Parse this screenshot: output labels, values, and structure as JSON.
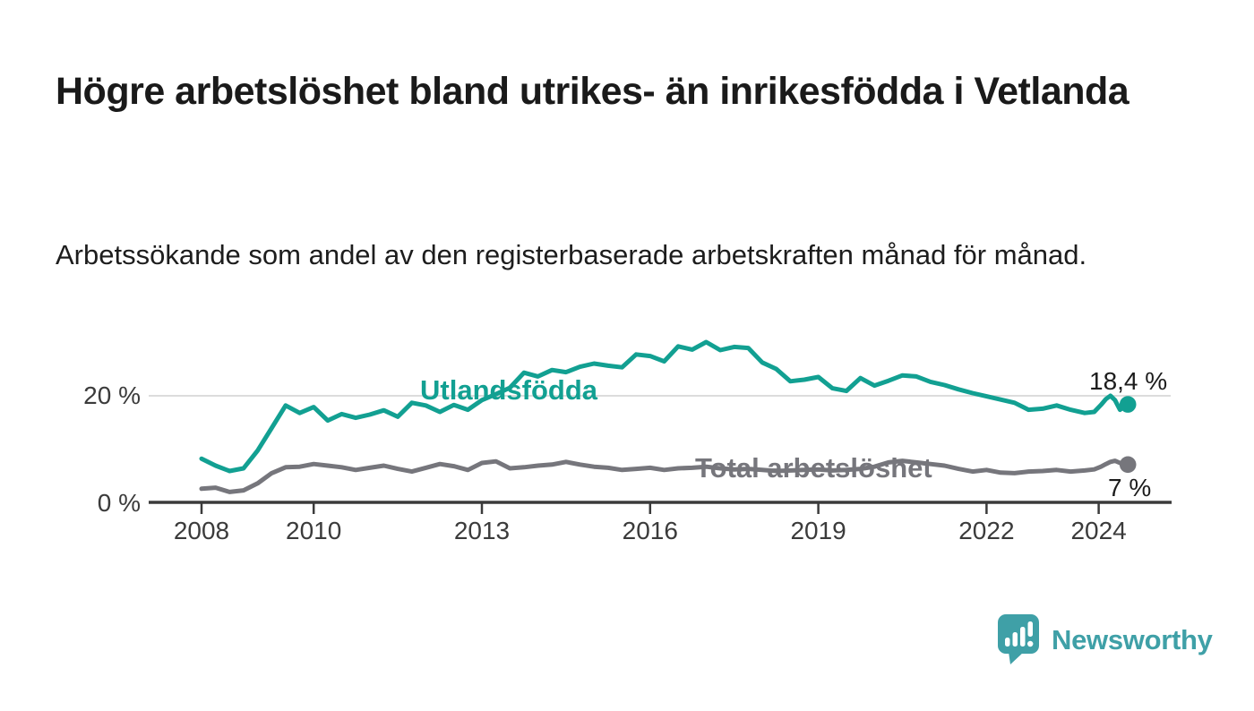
{
  "page": {
    "title": "Högre arbetslöshet bland utrikes- än inrikesfödda i Vetlanda",
    "subtitle": "Arbetssökande som andel av den registerbaserade arbetskraften månad för månad.",
    "background_color": "#ffffff"
  },
  "brand": {
    "name": "Newsworthy",
    "color": "#3fa0a7",
    "icon": "speech-bubble-bar-chart"
  },
  "chart_data": {
    "type": "line",
    "title": "Högre arbetslöshet bland utrikes- än inrikesfödda i Vetlanda",
    "subtitle": "Arbetssökande som andel av den registerbaserade arbetskraften månad för månad.",
    "unit": "%",
    "x_range": [
      2008,
      2024.52
    ],
    "y_range": [
      0,
      31
    ],
    "grid": "single horizontal gridline at 20 %, baseline axis at 0 %",
    "legend_position": "inline labels on lines",
    "axis_color": "#3b3b3b",
    "grid_color": "#dcdcdc",
    "x_ticks": [
      2008,
      2010,
      2013,
      2016,
      2019,
      2022,
      2024
    ],
    "x_tick_labels": [
      "2008",
      "2010",
      "2013",
      "2016",
      "2019",
      "2022",
      "2024"
    ],
    "y_ticks": [
      {
        "value": 20,
        "label": "20 %",
        "gridline": true
      },
      {
        "value": 0,
        "label": "0 %",
        "gridline": false
      }
    ],
    "x": [
      2008,
      2008.25,
      2008.5,
      2008.75,
      2009,
      2009.25,
      2009.5,
      2009.75,
      2010,
      2010.25,
      2010.5,
      2010.75,
      2011,
      2011.25,
      2011.5,
      2011.75,
      2012,
      2012.25,
      2012.5,
      2012.75,
      2013,
      2013.25,
      2013.5,
      2013.75,
      2014,
      2014.25,
      2014.5,
      2014.75,
      2015,
      2015.25,
      2015.5,
      2015.75,
      2016,
      2016.25,
      2016.5,
      2016.75,
      2017,
      2017.25,
      2017.5,
      2017.75,
      2018,
      2018.25,
      2018.5,
      2018.75,
      2019,
      2019.25,
      2019.5,
      2019.75,
      2020,
      2020.25,
      2020.5,
      2020.75,
      2021,
      2021.25,
      2021.5,
      2021.75,
      2022,
      2022.25,
      2022.5,
      2022.75,
      2023,
      2023.25,
      2023.5,
      2023.75,
      2023.92,
      2024.04,
      2024.13,
      2024.21,
      2024.29,
      2024.38,
      2024.52
    ],
    "series": [
      {
        "name": "Utlandsfödda",
        "color": "#12a092",
        "end_label": "18,4 %",
        "end_value": 18.4,
        "values": [
          8.3,
          7.0,
          6.0,
          6.5,
          9.8,
          14.0,
          18.2,
          16.8,
          17.9,
          15.4,
          16.6,
          15.9,
          16.5,
          17.3,
          16.1,
          18.7,
          18.2,
          17.0,
          18.3,
          17.4,
          19.2,
          20.3,
          21.5,
          24.3,
          23.6,
          24.8,
          24.4,
          25.4,
          26.0,
          25.6,
          25.3,
          27.7,
          27.4,
          26.4,
          29.2,
          28.6,
          30.0,
          28.5,
          29.1,
          28.9,
          26.2,
          25.0,
          22.7,
          23.0,
          23.5,
          21.4,
          20.9,
          23.3,
          21.9,
          22.8,
          23.8,
          23.6,
          22.6,
          22.0,
          21.2,
          20.5,
          19.9,
          19.3,
          18.7,
          17.4,
          17.6,
          18.2,
          17.4,
          16.8,
          17.0,
          18.3,
          19.4,
          20.0,
          19.2,
          17.4,
          18.4
        ]
      },
      {
        "name": "Total arbetslöshet",
        "color": "#76767c",
        "end_label": "7 %",
        "end_value": 7,
        "values": [
          2.7,
          2.9,
          2.1,
          2.4,
          3.7,
          5.6,
          6.7,
          6.8,
          7.3,
          7.0,
          6.7,
          6.2,
          6.6,
          7.0,
          6.4,
          5.9,
          6.6,
          7.3,
          6.9,
          6.2,
          7.5,
          7.8,
          6.5,
          6.7,
          7.0,
          7.2,
          7.7,
          7.2,
          6.8,
          6.6,
          6.2,
          6.4,
          6.6,
          6.2,
          6.5,
          6.6,
          6.8,
          6.5,
          6.3,
          6.4,
          6.2,
          6.0,
          6.1,
          6.2,
          6.3,
          6.1,
          6.2,
          6.4,
          6.8,
          7.6,
          7.9,
          7.6,
          7.3,
          7.0,
          6.4,
          5.9,
          6.2,
          5.7,
          5.6,
          5.9,
          6.0,
          6.2,
          5.9,
          6.1,
          6.3,
          6.8,
          7.3,
          7.7,
          7.9,
          7.5,
          7.2
        ]
      }
    ]
  }
}
